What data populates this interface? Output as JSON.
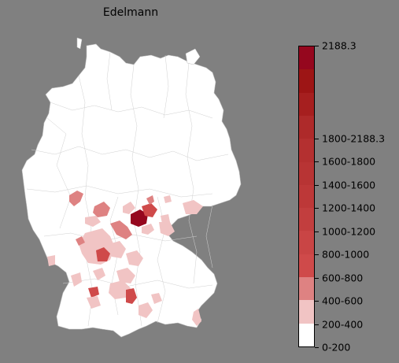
{
  "title": "Edelmann",
  "legend": {
    "colors": [
      "#ffffff",
      "#f1c4c4",
      "#de8282",
      "#cf4a4a",
      "#c94545",
      "#c23e3e",
      "#bd3838",
      "#b83434",
      "#b43030",
      "#ae2a2a",
      "#a61f1f",
      "#9d1515",
      "#95071e"
    ],
    "ticks": [
      {
        "label": "0-200",
        "boundary": 0
      },
      {
        "label": "200-400",
        "boundary": 1
      },
      {
        "label": "400-600",
        "boundary": 2
      },
      {
        "label": "600-800",
        "boundary": 3
      },
      {
        "label": "800-1000",
        "boundary": 4
      },
      {
        "label": "1000-1200",
        "boundary": 5
      },
      {
        "label": "1200-1400",
        "boundary": 6
      },
      {
        "label": "1400-1600",
        "boundary": 7
      },
      {
        "label": "1600-1800",
        "boundary": 8
      },
      {
        "label": "1800-2188.3",
        "boundary": 9
      },
      {
        "label": "2188.3",
        "boundary": 10
      }
    ]
  },
  "colors": {
    "background": "#808080",
    "land": "#ffffff",
    "border": "#c8c8c8"
  }
}
